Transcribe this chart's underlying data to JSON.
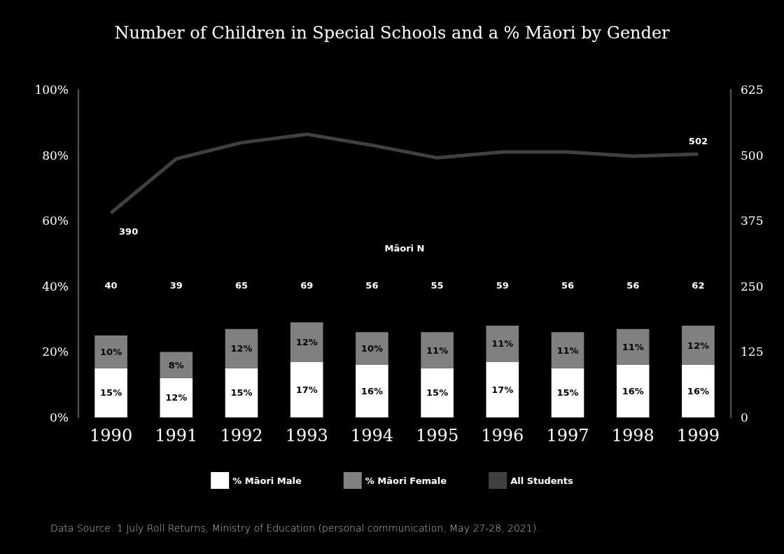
{
  "chart_data": {
    "type": "bar",
    "title": "Number of Children in Special Schools and a % Māori by Gender",
    "categories": [
      "1990",
      "1991",
      "1992",
      "1993",
      "1994",
      "1995",
      "1996",
      "1997",
      "1998",
      "1999"
    ],
    "series": [
      {
        "name": "% Māori Male",
        "color": "#ffffff",
        "values": [
          15,
          12,
          15,
          17,
          16,
          15,
          17,
          15,
          16,
          16
        ],
        "value_labels": [
          "15%",
          "12%",
          "15%",
          "17%",
          "16%",
          "15%",
          "17%",
          "15%",
          "16%",
          "16%"
        ]
      },
      {
        "name": "% Māori Female",
        "color": "#808080",
        "values": [
          10,
          8,
          12,
          12,
          10,
          11,
          11,
          11,
          11,
          12
        ],
        "value_labels": [
          "10%",
          "8%",
          "12%",
          "12%",
          "10%",
          "11%",
          "11%",
          "11%",
          "11%",
          "12%"
        ]
      },
      {
        "name": "All Students",
        "type": "line",
        "axis": "y2",
        "color": "#404040",
        "values": [
          390,
          493,
          524,
          540,
          519,
          495,
          506,
          506,
          498,
          502
        ],
        "value_labels": [
          "390",
          null,
          null,
          null,
          null,
          null,
          null,
          null,
          null,
          "502"
        ]
      }
    ],
    "stacked": true,
    "ylim": [
      0,
      100
    ],
    "yticks": [
      {
        "value": 0,
        "label": "0%"
      },
      {
        "value": 20,
        "label": "20%"
      },
      {
        "value": 40,
        "label": "40%"
      },
      {
        "value": 60,
        "label": "60%"
      },
      {
        "value": 80,
        "label": "80%"
      },
      {
        "value": 100,
        "label": "100%"
      }
    ],
    "y2lim": [
      0,
      625
    ],
    "y2ticks": [
      0,
      125,
      250,
      375,
      500,
      625
    ],
    "grid": false,
    "legend": "bottom",
    "marker": "none",
    "annotations": [
      "Māori N",
      "40",
      "39",
      "65",
      "69",
      "56",
      "55",
      "59",
      "56",
      "56",
      "62",
      "Data Source. 1 July Roll Returns, Ministry of Education (personal communication, May 27-28, 2021)."
    ]
  }
}
